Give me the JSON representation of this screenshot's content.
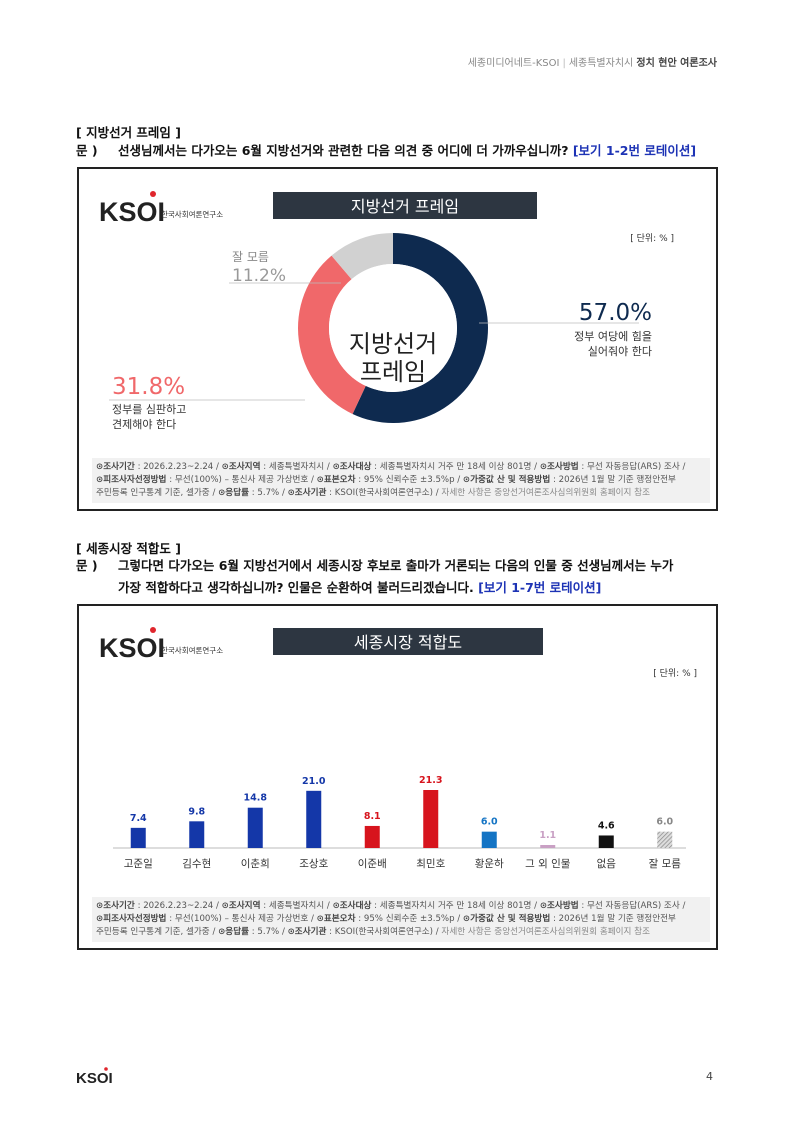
{
  "header": {
    "left": "세종미디어네트-KSOI",
    "sep": "|",
    "middle": "세종특별자치시",
    "bold": "정치 현안 여론조사"
  },
  "logo": {
    "text": "KSOI",
    "sub": "한국사회여론연구소"
  },
  "section1": {
    "title": "[ 지방선거 프레임 ]",
    "q_mark": "문 )",
    "question": "선생님께서는 다가오는 6월 지방선거와 관련한 다음 의견 중 어디에 더 가까우십니까?",
    "rotation": "[보기 1-2번 로테이션]"
  },
  "section2": {
    "title": "[ 세종시장 적합도 ]",
    "q_mark": "문 )",
    "question_line1": "그렇다면 다가오는 6월 지방선거에서 세종시장 후보로 출마가 거론되는 다음의 인물 중 선생님께서는 누가",
    "question_line2": "가장 적합하다고 생각하십니까? 인물은 순환하여 불러드리겠습니다.",
    "rotation": "[보기 1-7번 로테이션]"
  },
  "chart_data": [
    {
      "type": "pie",
      "title": "지방선거 프레임",
      "unit": "[ 단위: % ]",
      "center_label": [
        "지방선거",
        "프레임"
      ],
      "slices": [
        {
          "label": [
            "정부 여당에 힘을",
            "실어줘야 한다"
          ],
          "value": 57.0,
          "display": "57.0%",
          "color": "#0e2a4f"
        },
        {
          "label": [
            "정부를 심판하고",
            "견제해야 한다"
          ],
          "value": 31.8,
          "display": "31.8%",
          "color": "#f0686a"
        },
        {
          "label": [
            "잘 모름"
          ],
          "value": 11.2,
          "display": "11.2%",
          "color": "#d1d1d1"
        }
      ]
    },
    {
      "type": "bar",
      "title": "세종시장 적합도",
      "unit": "[ 단위: % ]",
      "categories": [
        "고준일",
        "김수현",
        "이춘희",
        "조상호",
        "이준배",
        "최민호",
        "황운하",
        "그 외 인물",
        "없음",
        "잘 모름"
      ],
      "values": [
        7.4,
        9.8,
        14.8,
        21.0,
        8.1,
        21.3,
        6.0,
        1.1,
        4.6,
        6.0
      ],
      "colors": [
        "#1437a8",
        "#1437a8",
        "#1437a8",
        "#1437a8",
        "#d7141d",
        "#d7141d",
        "#1474c4",
        "#c9a0c4",
        "#111111",
        "#999999"
      ],
      "label_colors": [
        "#1437a8",
        "#1437a8",
        "#1437a8",
        "#1437a8",
        "#d7141d",
        "#d7141d",
        "#1474c4",
        "#c9a0c4",
        "#111111",
        "#888888"
      ],
      "ylim": [
        0,
        28
      ]
    }
  ],
  "note": {
    "k1": "조사기간",
    "v1": "2026.2.23~2.24",
    "k2": "조사지역",
    "v2": "세종특별자치시",
    "k3": "조사대상",
    "v3": "세종특별자치시 거주 만 18세 이상 801명",
    "k4": "조사방법",
    "v4": "무선 자동응답(ARS) 조사",
    "k5": "피조사자선정방법",
    "v5": "무선(100%) – 통신사 제공 가상번호",
    "k6": "표본오차",
    "v6": "95% 신뢰수준 ±3.5%p",
    "k7": "가중값 산 및 적용방법",
    "v7": "2026년 1월 말 기준 행정안전부",
    "v7b": "주민등록 인구통계 기준, 셀가중",
    "k8": "응답률",
    "v8": "5.7%",
    "k9": "조사기관",
    "v9": "KSOI(한국사회여론연구소)",
    "tail": "자세한 사항은 중앙선거여론조사심의위원회 홈페이지 참조"
  },
  "page_number": "4"
}
